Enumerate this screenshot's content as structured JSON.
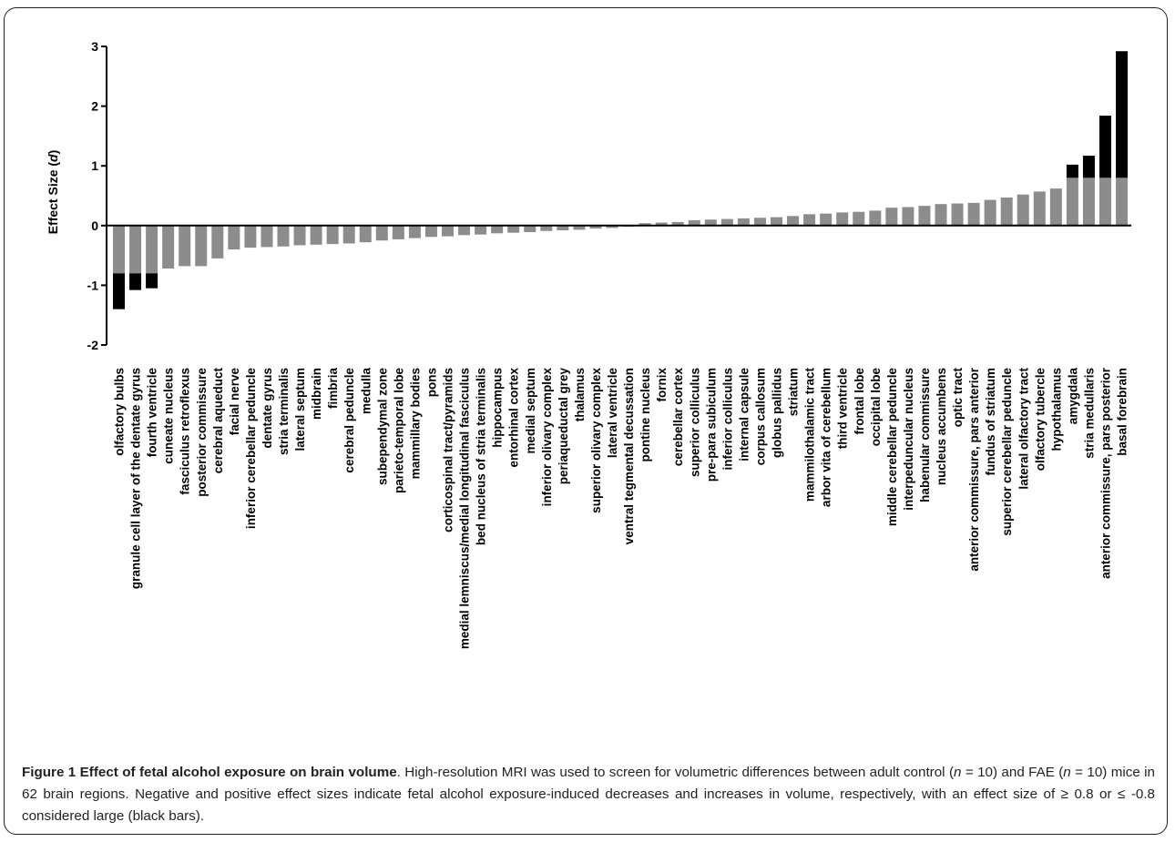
{
  "caption": {
    "label": "Figure 1",
    "title": "Effect of fetal alcohol exposure on brain volume",
    "t1": ". High-resolution MRI was used to screen for volumetric differences between adult control (",
    "n1_var": "n",
    "n1_rest": " = 10) and FAE (",
    "n2_var": "n",
    "n2_rest": " = 10) mice in 62 brain regions. Negative and positive effect sizes indicate fetal alcohol exposure-induced decreases and increases in volume, respectively, with an effect size of ≥ 0.8 or ≤ -0.8 considered large (black bars)."
  },
  "colors": {
    "gray": "#8c8c8c",
    "black": "#000000",
    "text": "#231f20"
  },
  "chart_data": {
    "type": "bar",
    "title": "",
    "ylabel_main": "Effect Size (",
    "ylabel_var": "d",
    "ylabel_close": ")",
    "xlabel": "",
    "ylim": [
      -2,
      3
    ],
    "yticks": [
      "-2",
      "-1",
      "0",
      "1",
      "2",
      "3"
    ],
    "threshold": 0.8,
    "grid": false,
    "categories": [
      "olfactory bulbs",
      "granule cell layer of the dentate gyrus",
      "fourth ventricle",
      "cuneate nucleus",
      "fasciculus retroflexus",
      "posterior commissure",
      "cerebral aqueduct",
      "facial nerve",
      "inferior cerebellar peduncle",
      "dentate gyrus",
      "stria terminalis",
      "lateral septum",
      "midbrain",
      "fimbria",
      "cerebral peduncle",
      "medulla",
      "subependymal zone",
      "parieto-temporal lobe",
      "mammillary bodies",
      "pons",
      "corticospinal tract/pyramids",
      "medial lemniscus/medial longitudinal fasciculus",
      "bed nucleus of stria terminalis",
      "hippocampus",
      "entorhinal cortex",
      "medial septum",
      "inferior olivary complex",
      "periaqueductal grey",
      "thalamus",
      "superior olivary complex",
      "lateral ventricle",
      "ventral tegmental decussation",
      "pontine nucleus",
      "fornix",
      "cerebellar cortex",
      "superior colliculus",
      "pre-para subiculum",
      "inferior colliculus",
      "internal capsule",
      "corpus callosum",
      "globus pallidus",
      "striatum",
      "mammilothalamic tract",
      "arbor vita of cerebellum",
      "third ventricle",
      "frontal lobe",
      "occipital lobe",
      "middle cerebellar peduncle",
      "interpeduncular nucleus",
      "habenular commissure",
      "nucleus accumbens",
      "optic tract",
      "anterior commissure, pars anterior",
      "fundus of striatum",
      "superior cerebellar peduncle",
      "lateral olfactory tract",
      "olfactory tubercle",
      "hypothalamus",
      "amygdala",
      "stria medullaris",
      "anterior commissure, pars posterior",
      "basal forebrain"
    ],
    "values": [
      -1.4,
      -1.08,
      -1.05,
      -0.72,
      -0.68,
      -0.68,
      -0.55,
      -0.4,
      -0.37,
      -0.36,
      -0.35,
      -0.33,
      -0.32,
      -0.31,
      -0.3,
      -0.28,
      -0.25,
      -0.23,
      -0.21,
      -0.19,
      -0.18,
      -0.16,
      -0.15,
      -0.13,
      -0.12,
      -0.11,
      -0.09,
      -0.08,
      -0.07,
      -0.05,
      -0.04,
      -0.02,
      0.04,
      0.05,
      0.06,
      0.09,
      0.1,
      0.11,
      0.12,
      0.13,
      0.14,
      0.16,
      0.19,
      0.2,
      0.22,
      0.23,
      0.25,
      0.3,
      0.31,
      0.33,
      0.36,
      0.37,
      0.38,
      0.43,
      0.47,
      0.52,
      0.57,
      0.62,
      1.02,
      1.17,
      1.84,
      2.92
    ]
  }
}
